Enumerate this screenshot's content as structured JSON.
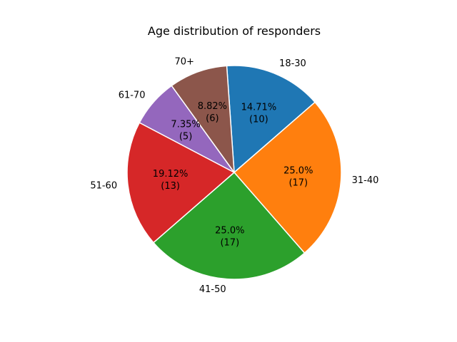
{
  "chart_data": {
    "type": "pie",
    "title": "Age distribution of responders",
    "slices": [
      {
        "label": "18-30",
        "value": 10,
        "percent_text": "14.71%",
        "count_text": "(10)",
        "color": "#1f77b4"
      },
      {
        "label": "31-40",
        "value": 17,
        "percent_text": "25.0%",
        "count_text": "(17)",
        "color": "#ff7f0e"
      },
      {
        "label": "41-50",
        "value": 17,
        "percent_text": "25.0%",
        "count_text": "(17)",
        "color": "#2ca02c"
      },
      {
        "label": "51-60",
        "value": 13,
        "percent_text": "19.12%",
        "count_text": "(13)",
        "color": "#d62728"
      },
      {
        "label": "61-70",
        "value": 5,
        "percent_text": "7.35%",
        "count_text": "(5)",
        "color": "#9467bd"
      },
      {
        "label": "70+",
        "value": 6,
        "percent_text": "8.82%",
        "count_text": "(6)",
        "color": "#8c564b"
      }
    ],
    "start_angle_deg": 94,
    "direction": "clockwise",
    "legend": "none"
  }
}
